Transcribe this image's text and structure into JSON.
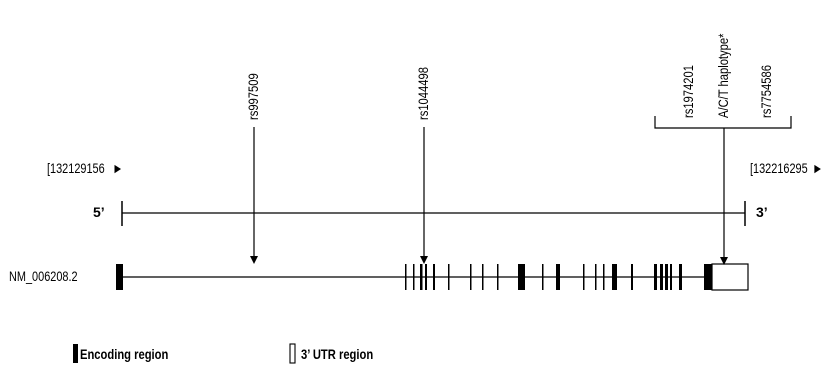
{
  "coords": {
    "start": "[132129156",
    "end": "[132216295",
    "arrow": "►"
  },
  "strand": {
    "five_prime": "5’",
    "three_prime": "3’"
  },
  "transcript": {
    "name": "NM_006208.2"
  },
  "snps": {
    "rs997509": "rs997509",
    "rs1044498": "rs1044498",
    "rs1974201": "rs1974201",
    "haplotype": "A/C/T haplotype*",
    "rs7754586": "rs7754586"
  },
  "legend": {
    "encoding": "Encoding region",
    "utr": "3’ UTR region"
  }
}
